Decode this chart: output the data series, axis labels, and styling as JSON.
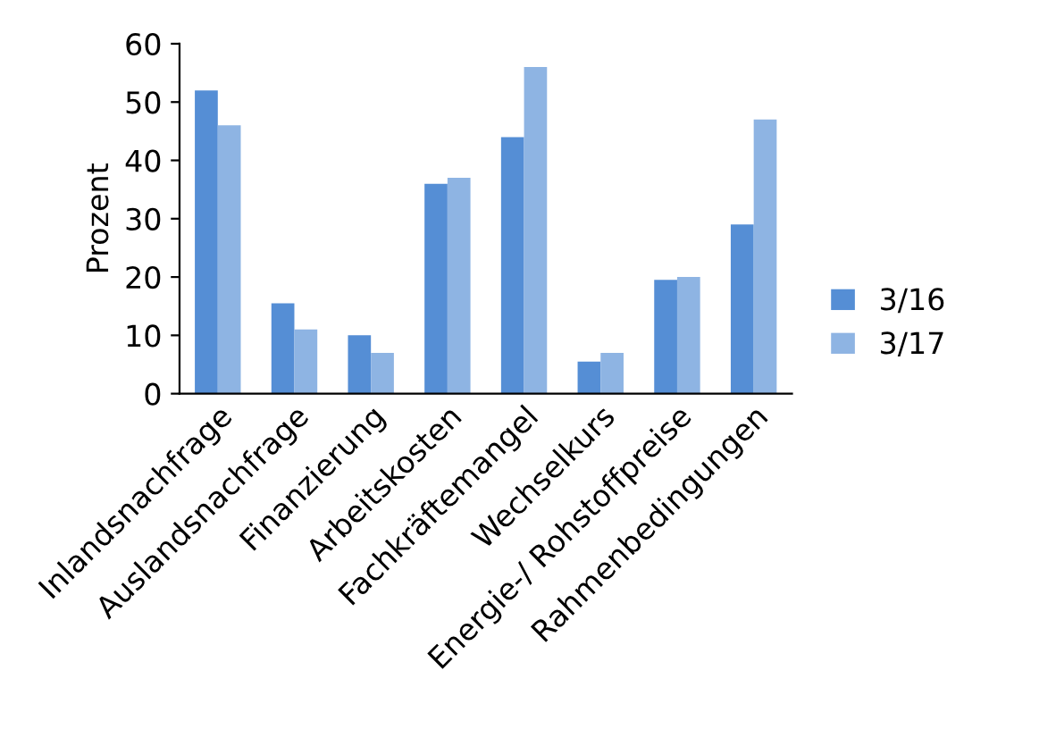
{
  "chart_data": {
    "type": "bar",
    "ylabel": "Prozent",
    "categories": [
      "Inlandsnachfrage",
      "Auslandsnachfrage",
      "Finanzierung",
      "Arbeitskosten",
      "Fachkräftemangel",
      "Wechselkurs",
      "Energie-/ Rohstoffpreise",
      "Rahmenbedingungen"
    ],
    "series": [
      {
        "name": "3/16",
        "color": "#558ed5",
        "values": [
          52,
          15.5,
          10,
          36,
          44,
          5.5,
          19.5,
          29
        ]
      },
      {
        "name": "3/17",
        "color": "#8eb4e3",
        "values": [
          46,
          11,
          7,
          37,
          56,
          7,
          20,
          47
        ]
      }
    ],
    "ylim": [
      0,
      60
    ],
    "yticks": [
      0,
      10,
      20,
      30,
      40,
      50,
      60
    ],
    "grid": false,
    "legend": "right"
  }
}
